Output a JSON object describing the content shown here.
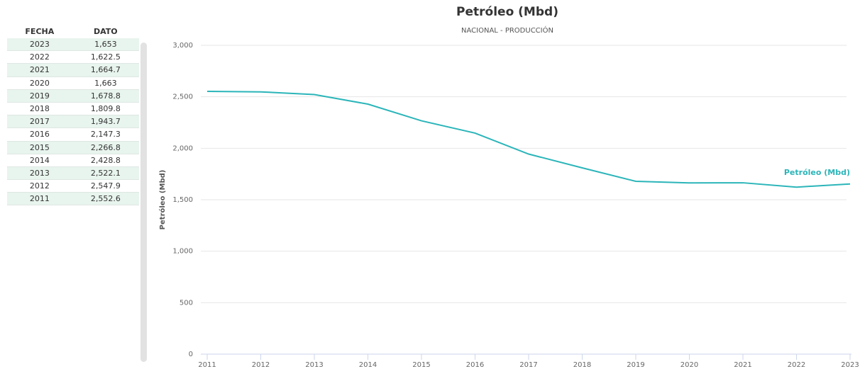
{
  "table": {
    "headers": [
      "FECHA",
      "DATO"
    ],
    "rows": [
      [
        "2023",
        "1,653"
      ],
      [
        "2022",
        "1,622.5"
      ],
      [
        "2021",
        "1,664.7"
      ],
      [
        "2020",
        "1,663"
      ],
      [
        "2019",
        "1,678.8"
      ],
      [
        "2018",
        "1,809.8"
      ],
      [
        "2017",
        "1,943.7"
      ],
      [
        "2016",
        "2,147.3"
      ],
      [
        "2015",
        "2,266.8"
      ],
      [
        "2014",
        "2,428.8"
      ],
      [
        "2013",
        "2,522.1"
      ],
      [
        "2012",
        "2,547.9"
      ],
      [
        "2011",
        "2,552.6"
      ]
    ]
  },
  "chart_data": {
    "type": "line",
    "title": "Petróleo (Mbd)",
    "subtitle": "NACIONAL - PRODUCCIÓN",
    "ylabel": "Petróleo (Mbd)",
    "categories": [
      "2011",
      "2012",
      "2013",
      "2014",
      "2015",
      "2016",
      "2017",
      "2018",
      "2019",
      "2020",
      "2021",
      "2022",
      "2023"
    ],
    "series": [
      {
        "name": "Petróleo (Mbd)",
        "color": "#2bb5b9",
        "values": [
          2552.6,
          2547.9,
          2522.1,
          2428.8,
          2266.8,
          2147.3,
          1943.7,
          1809.8,
          1678.8,
          1663,
          1664.7,
          1622.5,
          1653
        ]
      }
    ],
    "ylim": [
      0,
      3000
    ],
    "yticks": [
      0,
      500,
      {
        "value": 1000,
        "label": "1,000"
      },
      {
        "value": 1500,
        "label": "1,500"
      },
      {
        "value": 2000,
        "label": "2,000"
      },
      {
        "value": 2500,
        "label": "2,500"
      },
      {
        "value": 3000,
        "label": "3,000"
      }
    ],
    "grid": true
  }
}
